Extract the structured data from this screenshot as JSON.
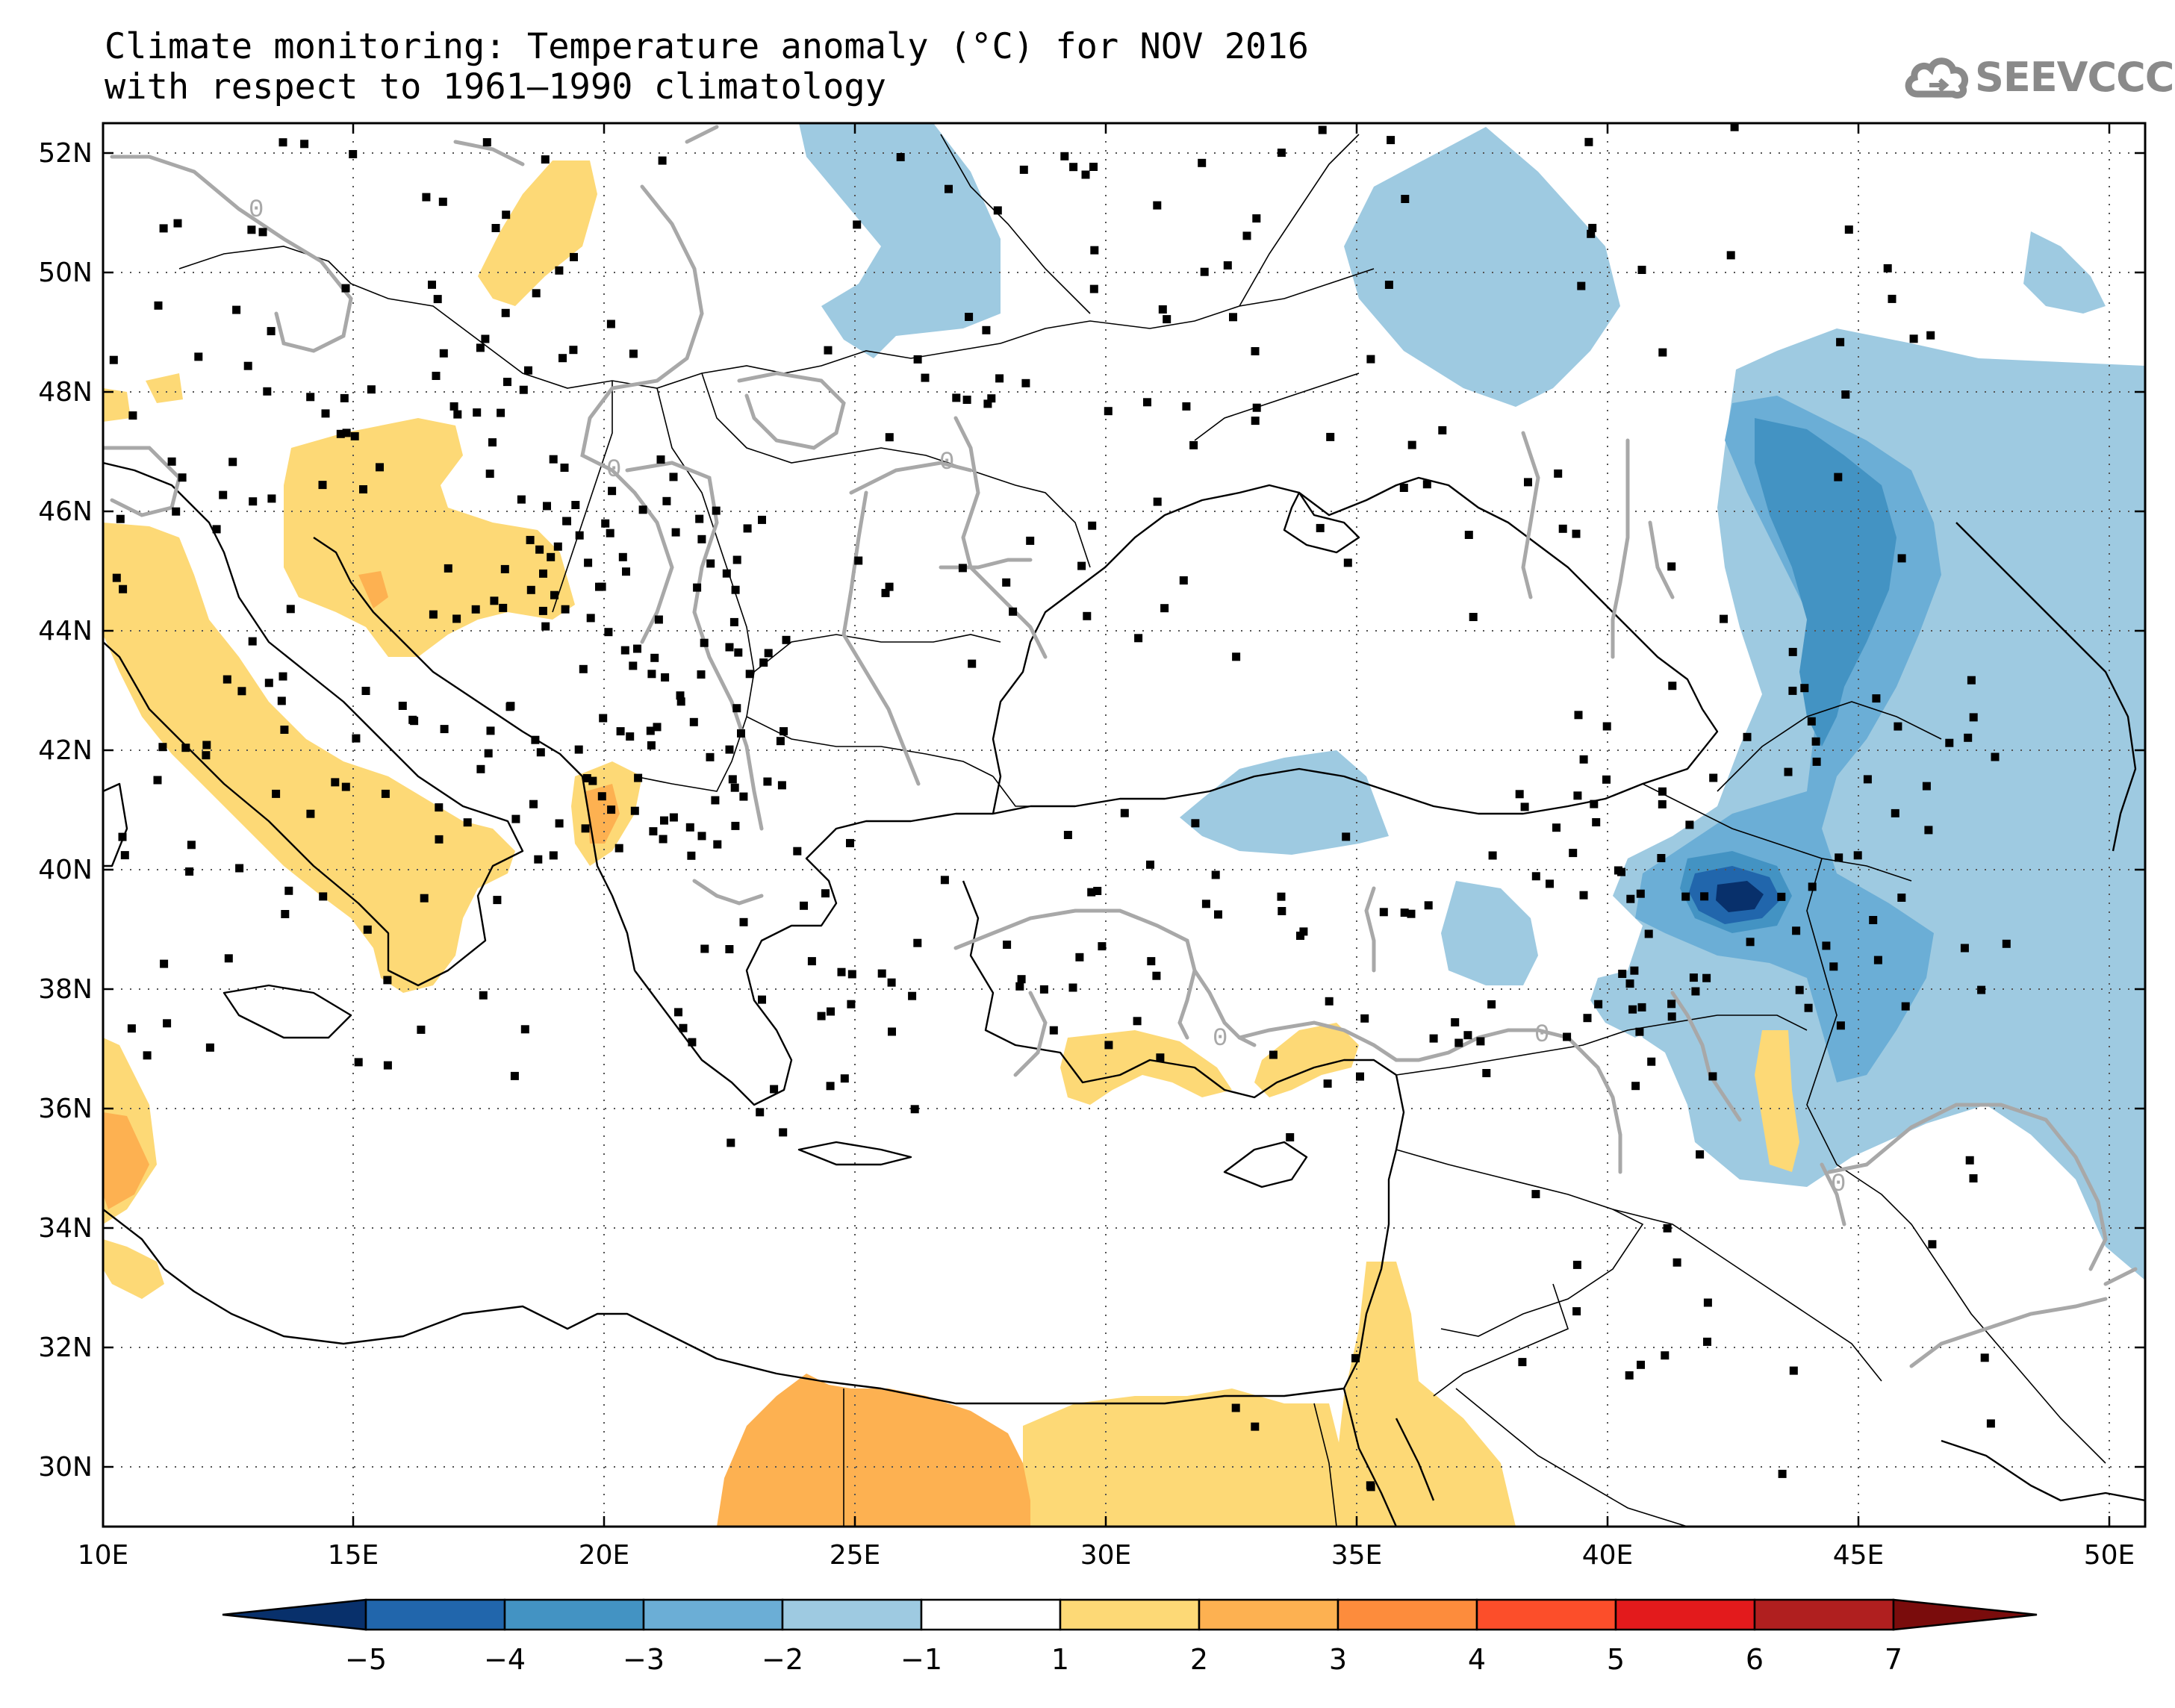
{
  "title": {
    "line1": "Climate monitoring: Temperature anomaly (°C) for NOV 2016",
    "line2": "with respect to 1961–1990 climatology"
  },
  "logo": {
    "text": "SEEVCCC",
    "icon": "cloud-arrow-icon"
  },
  "map": {
    "lon_range": [
      10,
      51
    ],
    "lat_range": [
      29,
      52.5
    ],
    "lon_ticks": [
      "10E",
      "15E",
      "20E",
      "25E",
      "30E",
      "35E",
      "40E",
      "45E",
      "50E"
    ],
    "lat_ticks": [
      "30N",
      "32N",
      "34N",
      "36N",
      "38N",
      "40N",
      "42N",
      "44N",
      "46N",
      "48N",
      "50N",
      "52N"
    ],
    "contour_label": "0",
    "grid": "dotted"
  },
  "colorbar": {
    "ticks": [
      "−5",
      "−4",
      "−3",
      "−2",
      "−1",
      "1",
      "2",
      "3",
      "4",
      "5",
      "6",
      "7"
    ],
    "colors": [
      "#08306b",
      "#2166ac",
      "#4393c3",
      "#6baed6",
      "#9ecae1",
      "#ffffff",
      "#fdd976",
      "#fdb151",
      "#fd8c3c",
      "#fc4e2a",
      "#e31a1c",
      "#b01f1f",
      "#7a0c0c"
    ]
  },
  "legend_colors": {
    "cold1": "#9ecae1",
    "cold2": "#6baed6",
    "cold3": "#4393c3",
    "cold4": "#2166ac",
    "warm1": "#fdd976",
    "warm2": "#fdb151",
    "warm3": "#fd8c3c",
    "contour": "#a8a8a8"
  }
}
